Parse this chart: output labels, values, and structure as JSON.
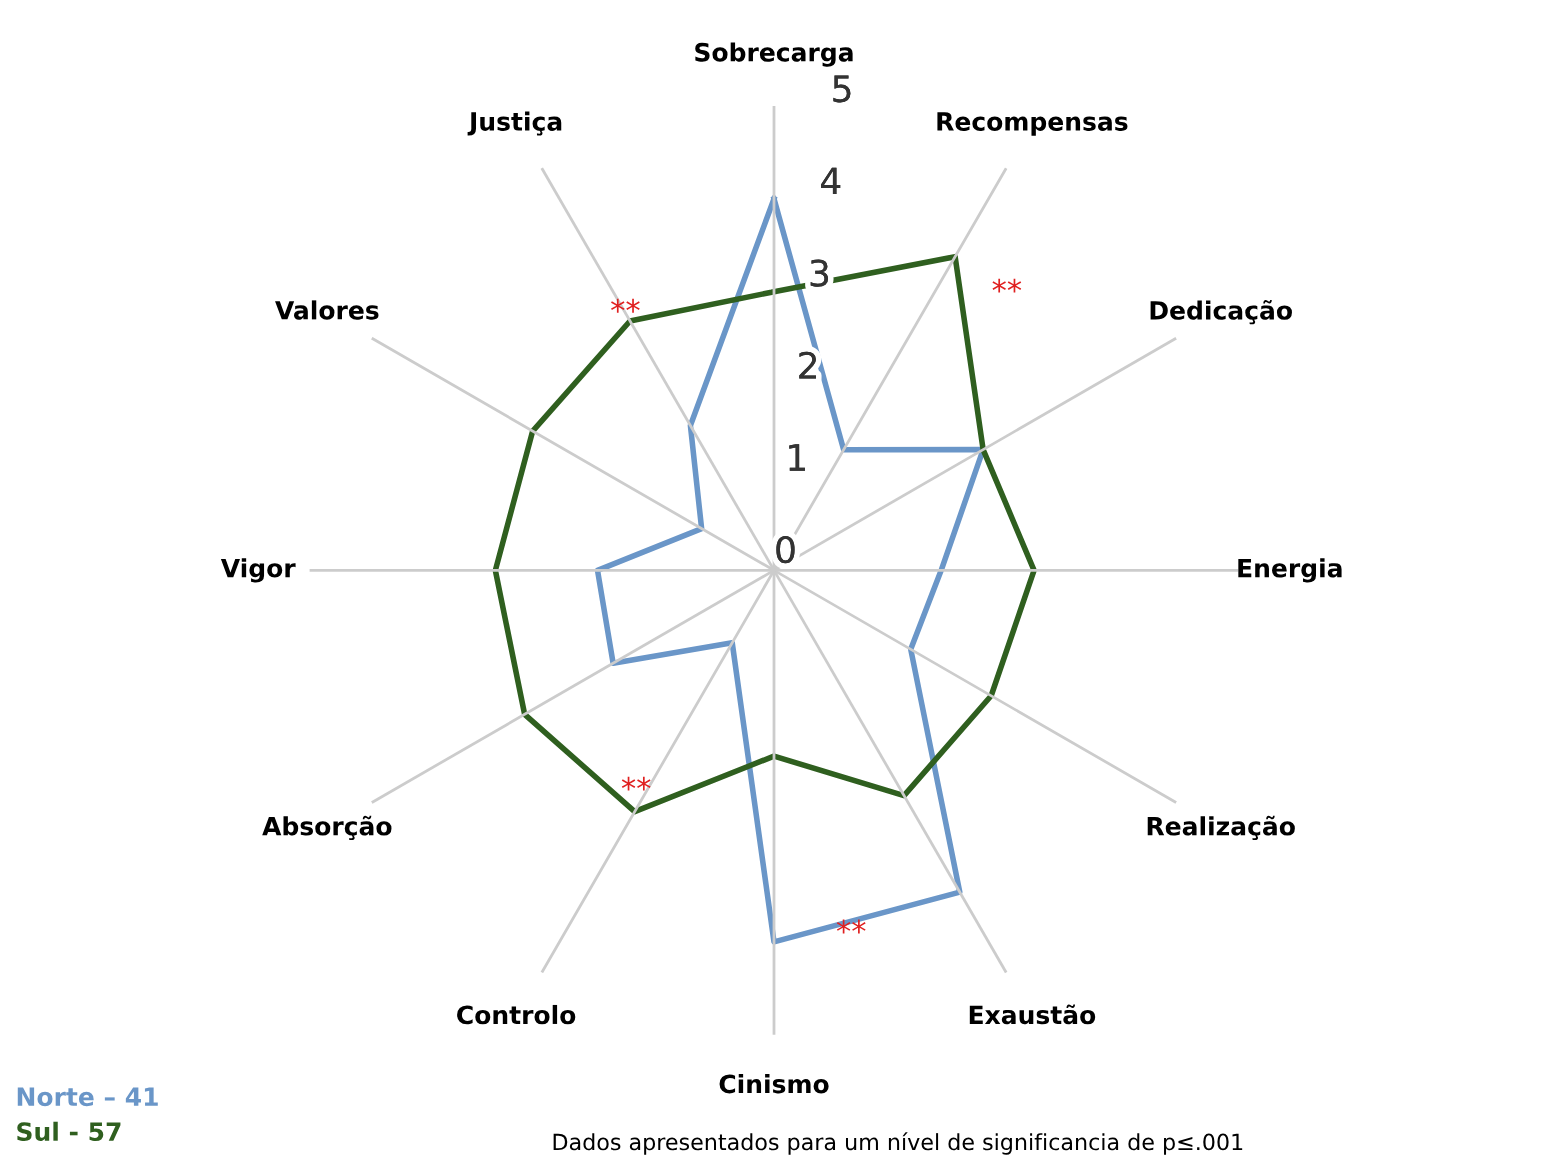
{
  "chart_data": {
    "type": "radar",
    "categories": [
      "Sobrecarga",
      "Recompensas",
      "Dedicação",
      "Energia",
      "Realização",
      "Exaustão",
      "Cinismo",
      "Controlo",
      "Absorção",
      "Vigor",
      "Valores",
      "Justiça"
    ],
    "series": [
      {
        "name": "Norte – 41",
        "color": "#6a96c8",
        "values": [
          4,
          1.5,
          2.6,
          1.8,
          1.7,
          4.0,
          4,
          0.9,
          2.0,
          1.9,
          0.9,
          1.8
        ]
      },
      {
        "name": "Sul - 57",
        "color": "#2f5f1f",
        "values": [
          3,
          3.9,
          2.6,
          2.8,
          2.7,
          2.8,
          2,
          3.0,
          3.1,
          3.0,
          3.0,
          3.1
        ]
      }
    ],
    "ylim": [
      0,
      5
    ],
    "yticks": [
      0,
      1,
      2,
      3,
      4,
      5
    ],
    "grid": "x",
    "legend": "bottom left",
    "marker": "none",
    "annotations": [
      "**",
      "**",
      "**",
      "**",
      "Dados apresentados para um nível de significancia de p≤.001"
    ]
  }
}
